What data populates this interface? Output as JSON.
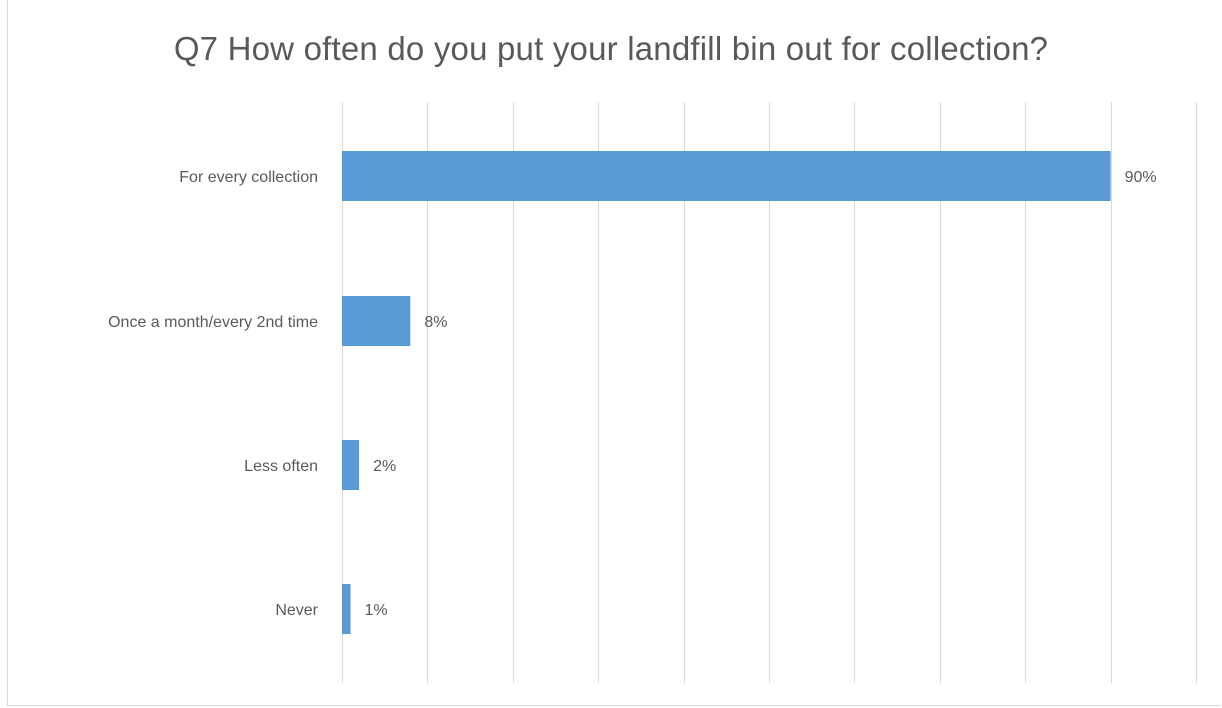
{
  "chart_data": {
    "type": "bar",
    "orientation": "horizontal",
    "title": "Q7 How often do you put your landfill bin out for collection?",
    "xlabel": "",
    "ylabel": "",
    "categories": [
      "For every collection",
      "Once a month/every 2nd time",
      "Less often",
      "Never"
    ],
    "values": [
      90,
      8,
      2,
      1
    ],
    "data_labels": [
      "90%",
      "8%",
      "2%",
      "1%"
    ],
    "xlim": [
      0,
      100
    ],
    "x_gridlines": [
      0,
      10,
      20,
      30,
      40,
      50,
      60,
      70,
      80,
      90,
      100
    ],
    "grid": "vertical",
    "tick_labels_x_shown": false,
    "legend": "none",
    "bar_color": "#5B9BD5",
    "grid_color": "#D9D9D9",
    "text_color": "#595959"
  }
}
